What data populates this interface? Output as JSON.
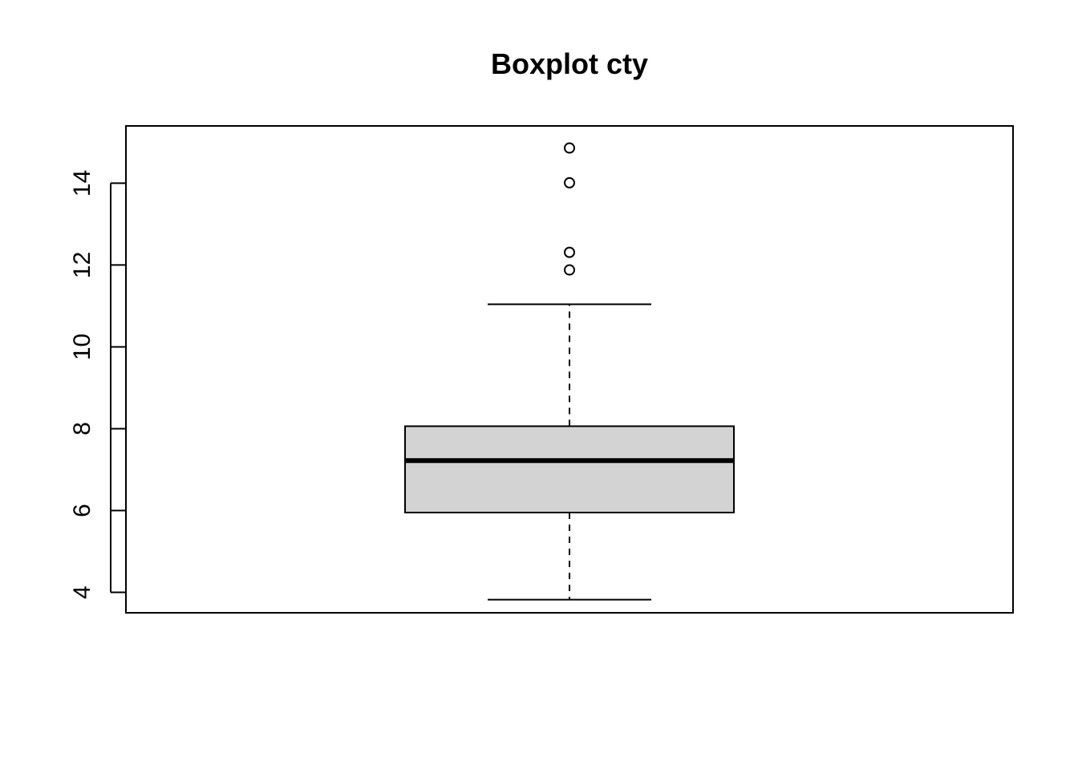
{
  "chart_data": {
    "type": "boxplot",
    "title": "Boxplot cty",
    "xlabel": "",
    "ylabel": "",
    "ylim": [
      3.5,
      15.4
    ],
    "yticks": [
      4,
      6,
      8,
      10,
      12,
      14
    ],
    "box": {
      "lower_whisker": 3.82,
      "q1": 5.95,
      "median": 7.22,
      "q3": 8.06,
      "upper_whisker": 11.04
    },
    "outliers": [
      11.88,
      12.31,
      14.01,
      14.86
    ],
    "box_fill": "#d3d3d3",
    "line_color": "#000000"
  }
}
